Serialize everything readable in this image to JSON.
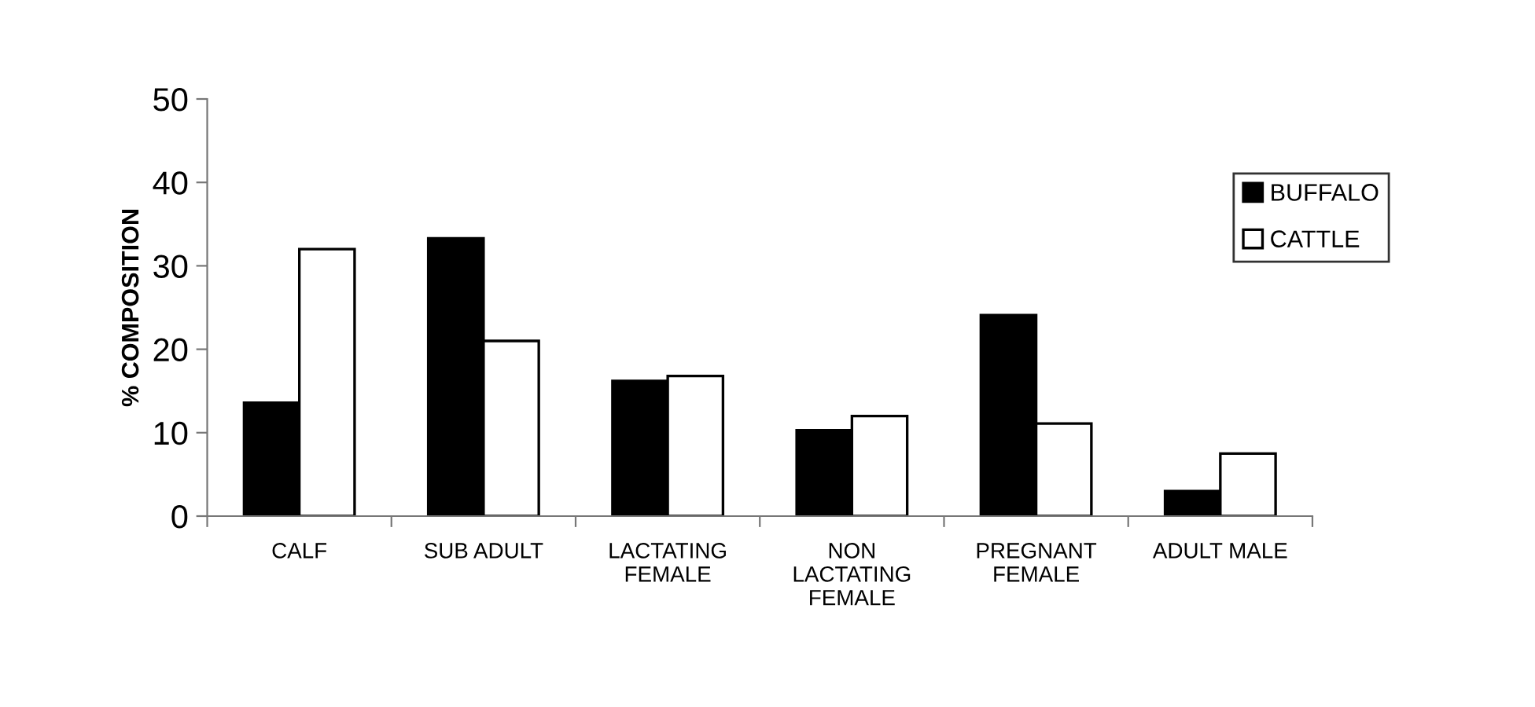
{
  "chart_data": {
    "type": "bar",
    "categories": [
      "CALF",
      "SUB ADULT",
      "LACTATING\nFEMALE",
      "NON\nLACTATING\nFEMALE",
      "PREGNANT\nFEMALE",
      "ADULT MALE"
    ],
    "series": [
      {
        "name": "BUFFALO",
        "color": "#000000",
        "values": [
          13.6,
          33.3,
          16.2,
          10.3,
          24.1,
          3.0
        ]
      },
      {
        "name": "CATTLE",
        "color": "#ffffff",
        "values": [
          32.0,
          21.0,
          16.8,
          12.0,
          11.1,
          7.5
        ]
      }
    ],
    "ylabel": "% COMPOSITION",
    "ylim": [
      0,
      50
    ],
    "yticks": [
      0,
      10,
      20,
      30,
      40,
      50
    ],
    "grid": false,
    "legend": "top right"
  }
}
